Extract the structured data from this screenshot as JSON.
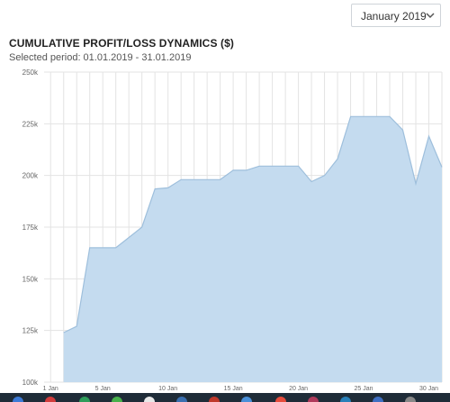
{
  "period_selector": {
    "value": "January 2019"
  },
  "header": {
    "title": "CUMULATIVE PROFIT/LOSS DYNAMICS ($)",
    "subtitle": "Selected period: 01.01.2019 - 31.01.2019"
  },
  "colors": {
    "area_fill": "#c4dbef",
    "area_line": "#9ebfdc",
    "grid": "#e3e3e3",
    "axis_text": "#666666"
  },
  "chart_data": {
    "type": "area",
    "title": "CUMULATIVE PROFIT/LOSS DYNAMICS ($)",
    "subtitle": "Selected period: 01.01.2019 - 31.01.2019",
    "xlabel": "",
    "ylabel": "",
    "xlim": [
      1,
      31
    ],
    "ylim": [
      100000,
      250000
    ],
    "grid": true,
    "legend": "none",
    "x_ticks": [
      {
        "value": 1,
        "label": "1 Jan"
      },
      {
        "value": 5,
        "label": "5 Jan"
      },
      {
        "value": 10,
        "label": "10 Jan"
      },
      {
        "value": 15,
        "label": "15 Jan"
      },
      {
        "value": 20,
        "label": "20 Jan"
      },
      {
        "value": 25,
        "label": "25 Jan"
      },
      {
        "value": 30,
        "label": "30 Jan"
      }
    ],
    "y_ticks": [
      {
        "value": 100000,
        "label": "100k"
      },
      {
        "value": 125000,
        "label": "125k"
      },
      {
        "value": 150000,
        "label": "150k"
      },
      {
        "value": 175000,
        "label": "175k"
      },
      {
        "value": 200000,
        "label": "200k"
      },
      {
        "value": 225000,
        "label": "225k"
      },
      {
        "value": 250000,
        "label": "250k"
      }
    ],
    "series": [
      {
        "x": [
          2,
          3,
          4,
          5,
          6,
          7,
          8,
          9,
          10,
          11,
          12,
          13,
          14,
          15,
          16,
          17,
          18,
          19,
          20,
          21,
          22,
          23,
          24,
          25,
          26,
          27,
          28,
          29,
          30,
          31
        ],
        "values": [
          124000,
          127000,
          165000,
          165000,
          165000,
          170000,
          175000,
          193500,
          194000,
          198000,
          198000,
          198000,
          198000,
          202500,
          202500,
          204500,
          204500,
          204500,
          204500,
          197000,
          200000,
          208000,
          228500,
          228500,
          228500,
          228500,
          222000,
          196000,
          219000,
          204000
        ]
      }
    ]
  }
}
